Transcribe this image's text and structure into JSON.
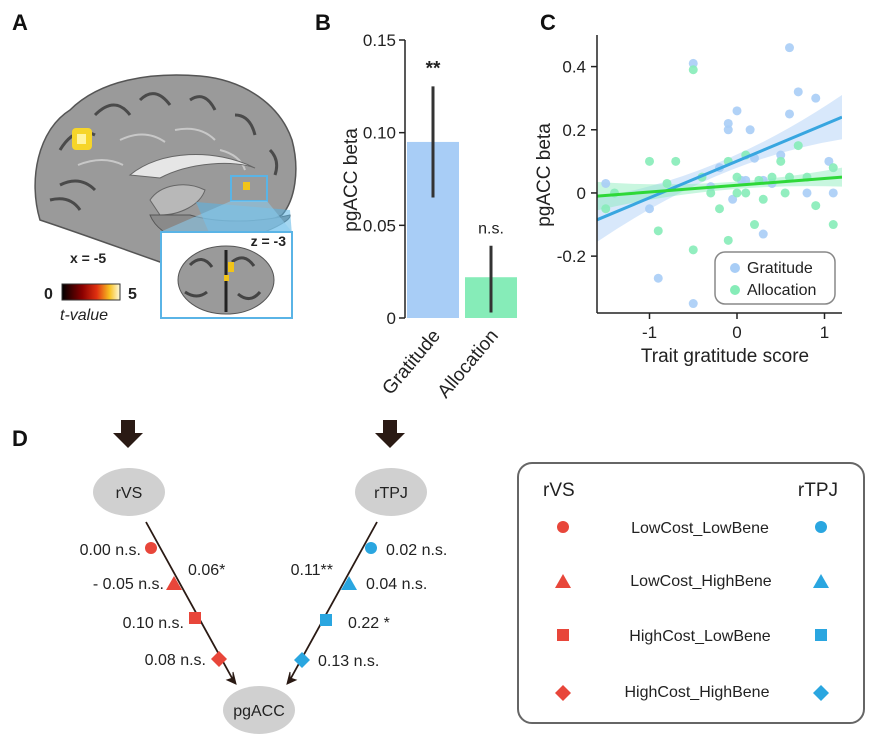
{
  "panels": {
    "a": "A",
    "b": "B",
    "c": "C",
    "d": "D"
  },
  "panel_a": {
    "slice_x": "x = -5",
    "slice_z": "z = -3",
    "colorbar_min": "0",
    "colorbar_max": "5",
    "colorbar_label": "t-value",
    "colors": {
      "highlight": "#5ab4e6",
      "activation": "#f2c418"
    }
  },
  "panel_b": {
    "chart_data": {
      "type": "bar",
      "categories": [
        "Gratitude",
        "Allocation"
      ],
      "values": [
        0.095,
        0.022
      ],
      "errors": [
        [
          0.065,
          0.125
        ],
        [
          0.003,
          0.039
        ]
      ],
      "annotations": [
        "**",
        "n.s."
      ],
      "ylabel": "pgACC beta",
      "ylim": [
        0,
        0.15
      ],
      "yticks": [
        "0",
        "0.05",
        "0.10",
        "0.15"
      ],
      "colors": [
        "#a8cdf6",
        "#86ecb8"
      ]
    }
  },
  "panel_c": {
    "chart_data": {
      "type": "scatter",
      "xlabel": "Trait gratitude score",
      "ylabel": "pgACC beta",
      "xlim": [
        -1.6,
        1.2
      ],
      "ylim": [
        -0.38,
        0.5
      ],
      "xticks": [
        "-1",
        "0",
        "1"
      ],
      "yticks": [
        "-0.2",
        "0",
        "0.2",
        "0.4"
      ],
      "legend_position": "bottom-right",
      "series": [
        {
          "name": "Gratitude",
          "color": "#a8cdf6",
          "line_color": "#38a6e0",
          "fit": [
            [
              -1.6,
              -0.085
            ],
            [
              1.2,
              0.24
            ]
          ],
          "points": [
            [
              -1.5,
              0.03
            ],
            [
              -1.0,
              -0.05
            ],
            [
              -0.9,
              -0.27
            ],
            [
              -0.5,
              0.41
            ],
            [
              -0.5,
              -0.35
            ],
            [
              -0.3,
              0.02
            ],
            [
              -0.2,
              0.08
            ],
            [
              -0.1,
              0.2
            ],
            [
              -0.1,
              0.22
            ],
            [
              -0.05,
              -0.02
            ],
            [
              0.0,
              0.26
            ],
            [
              0.05,
              0.04
            ],
            [
              0.1,
              0.04
            ],
            [
              0.15,
              0.2
            ],
            [
              0.2,
              0.11
            ],
            [
              0.3,
              -0.13
            ],
            [
              0.3,
              0.04
            ],
            [
              0.4,
              0.03
            ],
            [
              0.5,
              0.12
            ],
            [
              0.6,
              0.25
            ],
            [
              0.6,
              0.46
            ],
            [
              0.7,
              0.32
            ],
            [
              0.8,
              0.0
            ],
            [
              0.9,
              0.3
            ],
            [
              1.05,
              0.1
            ],
            [
              1.1,
              0.0
            ]
          ]
        },
        {
          "name": "Allocation",
          "color": "#86ecb8",
          "line_color": "#2ed838",
          "fit": [
            [
              -1.6,
              -0.01
            ],
            [
              1.2,
              0.05
            ]
          ],
          "points": [
            [
              -1.5,
              -0.05
            ],
            [
              -1.4,
              0.0
            ],
            [
              -1.0,
              0.1
            ],
            [
              -0.9,
              -0.12
            ],
            [
              -0.8,
              0.03
            ],
            [
              -0.7,
              0.1
            ],
            [
              -0.5,
              0.39
            ],
            [
              -0.5,
              -0.18
            ],
            [
              -0.4,
              0.05
            ],
            [
              -0.3,
              0.0
            ],
            [
              -0.2,
              -0.05
            ],
            [
              -0.1,
              0.1
            ],
            [
              -0.1,
              -0.15
            ],
            [
              0.0,
              0.0
            ],
            [
              0.0,
              0.05
            ],
            [
              0.1,
              0.12
            ],
            [
              0.1,
              0.0
            ],
            [
              0.2,
              -0.1
            ],
            [
              0.25,
              0.04
            ],
            [
              0.3,
              -0.02
            ],
            [
              0.4,
              0.05
            ],
            [
              0.5,
              0.1
            ],
            [
              0.55,
              0.0
            ],
            [
              0.6,
              0.05
            ],
            [
              0.7,
              0.15
            ],
            [
              0.8,
              0.05
            ],
            [
              0.9,
              -0.04
            ],
            [
              1.1,
              0.08
            ],
            [
              1.1,
              -0.1
            ]
          ]
        }
      ]
    }
  },
  "panel_d": {
    "nodes": {
      "left": "rVS",
      "right": "rTPJ",
      "target": "pgACC"
    },
    "left_labels": [
      "0.00 n.s.",
      "- 0.05 n.s.",
      "0.10 n.s.",
      "0.08 n.s."
    ],
    "left_extra": "0.06*",
    "right_labels": [
      "0.02 n.s.",
      "0.04 n.s.",
      "0.22 *",
      "0.13 n.s."
    ],
    "right_extra": "0.11**",
    "legend": {
      "left_header": "rVS",
      "right_header": "rTPJ",
      "items": [
        "LowCost_LowBene",
        "LowCost_HighBene",
        "HighCost_LowBene",
        "HighCost_HighBene"
      ],
      "marker_icons": [
        "circle-icon",
        "triangle-icon",
        "square-icon",
        "diamond-icon"
      ]
    },
    "colors": {
      "rvs": "#e8463a",
      "rtpj": "#2aa6e0",
      "node": "#d0d0d0",
      "arrow": "#2a1a14"
    }
  }
}
